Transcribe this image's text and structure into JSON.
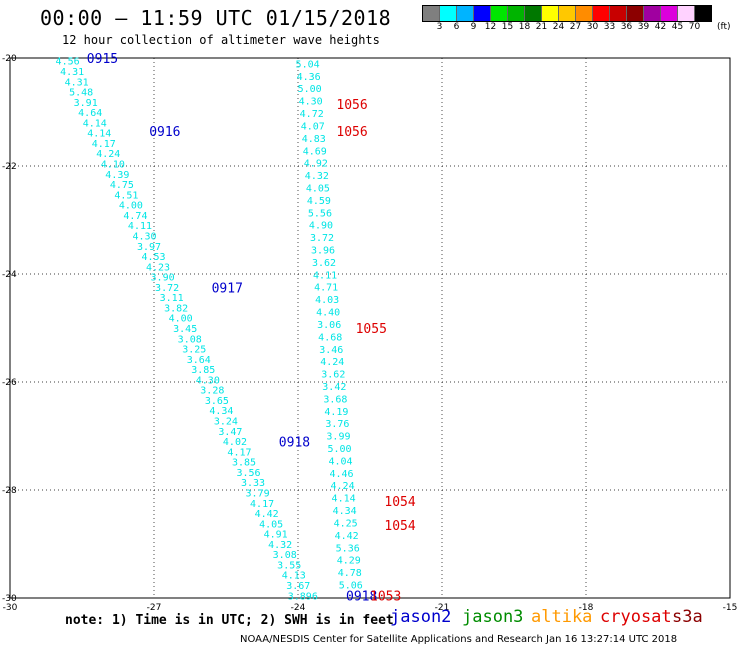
{
  "header": {
    "title": "00:00 – 11:59 UTC 01/15/2018",
    "subtitle": "12 hour collection of altimeter wave heights"
  },
  "legend": {
    "unit": "(ft)",
    "labels": [
      "3",
      "6",
      "9",
      "12",
      "15",
      "18",
      "21",
      "24",
      "27",
      "30",
      "33",
      "36",
      "39",
      "42",
      "45",
      "70"
    ],
    "colors": [
      "#7f7f7f",
      "#00ffff",
      "#00b4ff",
      "#0000ff",
      "#00e600",
      "#00b400",
      "#007800",
      "#ffff00",
      "#ffc800",
      "#ff8c00",
      "#ff0000",
      "#c80000",
      "#8c0000",
      "#a000a0",
      "#dc00dc",
      "#ffd2ff",
      "#000000"
    ]
  },
  "footer": {
    "note": "note: 1) Time is in UTC; 2) SWH is in feet",
    "satellites": [
      {
        "name": "jason2",
        "color": "#0000cc"
      },
      {
        "name": "jason3",
        "color": "#008c00"
      },
      {
        "name": "altika",
        "color": "#ff9900"
      },
      {
        "name": "cryosat",
        "color": "#dd0000"
      },
      {
        "name": "s3a",
        "color": "#8b0000"
      }
    ],
    "credit": "NOAA/NESDIS Center for Satellite Applications and Research   Jan 16 13:27:14 UTC 2018"
  },
  "chart_data": {
    "type": "scatter",
    "xlim": [
      -30,
      -15
    ],
    "ylim": [
      -30,
      -20
    ],
    "x_ticks": [
      -30,
      -27,
      -24,
      -21,
      -18,
      -15
    ],
    "y_ticks": [
      -20,
      -22,
      -24,
      -26,
      -28,
      -30
    ],
    "grid": true,
    "series": [
      {
        "name": "jason2",
        "color": "#00e5e5",
        "x_start": -28.8,
        "y_start": -20.05,
        "x_end": -23.9,
        "y_end": -29.95,
        "values": [
          "4.56",
          "4.31",
          "4.31",
          "5.48",
          "3.91",
          "4.64",
          "4.14",
          "4.14",
          "4.17",
          "4.24",
          "4.10",
          "4.39",
          "4.75",
          "4.51",
          "4.00",
          "4.74",
          "4.11",
          "4.30",
          "3.97",
          "4.53",
          "4.23",
          "3.90",
          "3.72",
          "3.11",
          "3.82",
          "4.00",
          "3.45",
          "3.08",
          "3.25",
          "3.64",
          "3.85",
          "4.30",
          "3.28",
          "3.65",
          "4.34",
          "3.24",
          "3.47",
          "4.02",
          "4.17",
          "3.85",
          "3.56",
          "3.33",
          "3.79",
          "4.17",
          "4.42",
          "4.05",
          "4.91",
          "4.32",
          "3.08",
          "3.55",
          "4.13",
          "3.67",
          "3.896"
        ]
      },
      {
        "name": "cryosat",
        "color": "#00e5e5",
        "x_start": -23.8,
        "y_start": -20.1,
        "x_end": -22.9,
        "y_end": -29.75,
        "values": [
          "5.04",
          "4.36",
          "5.00",
          "4.30",
          "4.72",
          "4.07",
          "4.83",
          "4.69",
          "4.92",
          "4.32",
          "4.05",
          "4.59",
          "5.56",
          "4.90",
          "3.72",
          "3.96",
          "3.62",
          "4.11",
          "4.71",
          "4.03",
          "4.40",
          "3.06",
          "4.68",
          "3.46",
          "4.24",
          "3.62",
          "3.42",
          "3.68",
          "4.19",
          "3.76",
          "3.99",
          "5.00",
          "4.04",
          "4.46",
          "4.24",
          "4.14",
          "4.34",
          "4.25",
          "4.42",
          "5.36",
          "4.29",
          "4.78",
          "5.06"
        ]
      }
    ],
    "time_labels": [
      {
        "text": "0915",
        "x": -28.4,
        "y": -20.0,
        "color": "#0000cc"
      },
      {
        "text": "0916",
        "x": -27.1,
        "y": -21.35,
        "color": "#0000cc"
      },
      {
        "text": "0917",
        "x": -25.8,
        "y": -24.25,
        "color": "#0000cc"
      },
      {
        "text": "0918",
        "x": -24.4,
        "y": -27.1,
        "color": "#0000cc"
      },
      {
        "text": "0918",
        "x": -23.0,
        "y": -29.95,
        "color": "#0000cc"
      },
      {
        "text": "1056",
        "x": -23.2,
        "y": -20.85,
        "color": "#dd0000"
      },
      {
        "text": "1056",
        "x": -23.2,
        "y": -21.35,
        "color": "#dd0000"
      },
      {
        "text": "1055",
        "x": -22.8,
        "y": -25.0,
        "color": "#dd0000"
      },
      {
        "text": "1054",
        "x": -22.2,
        "y": -28.2,
        "color": "#dd0000"
      },
      {
        "text": "1054",
        "x": -22.2,
        "y": -28.65,
        "color": "#dd0000"
      },
      {
        "text": "1053",
        "x": -22.5,
        "y": -29.95,
        "color": "#dd0000"
      }
    ]
  }
}
